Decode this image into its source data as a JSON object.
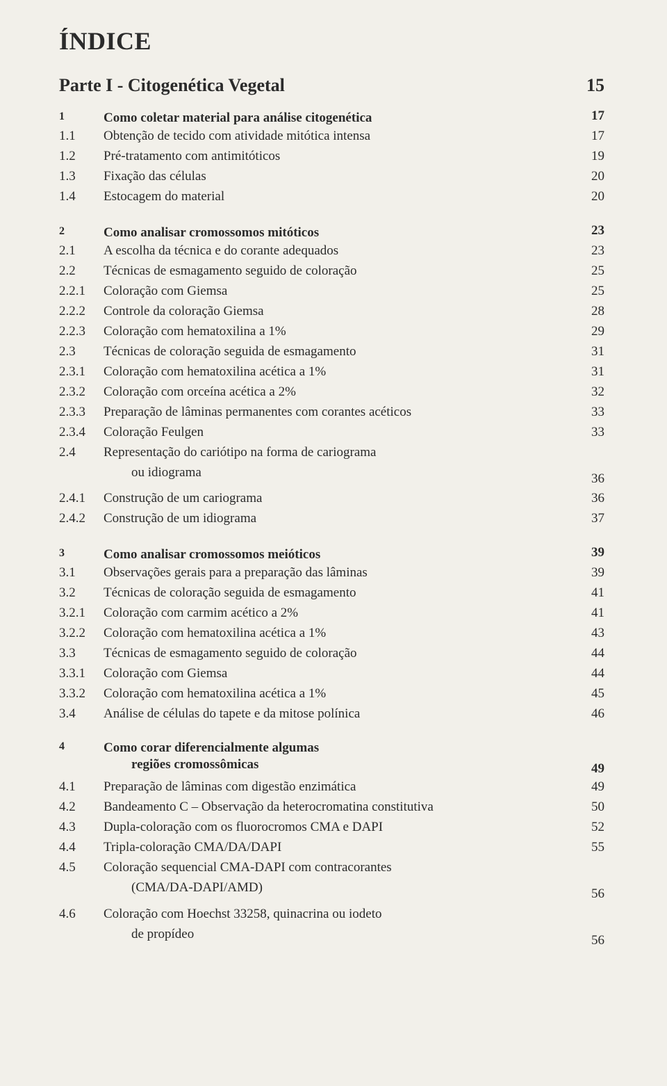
{
  "title": "ÍNDICE",
  "part": {
    "label": "Parte I - Citogenética Vegetal",
    "page": "15"
  },
  "fonts": {
    "title_size": 36,
    "part_size": 26,
    "body_size": 19
  },
  "colors": {
    "background": "#f2f0ea",
    "text": "#2b2b2b"
  },
  "entries": [
    {
      "type": "section",
      "num": "1",
      "label": "Como coletar material para análise citogenética",
      "page": "17"
    },
    {
      "type": "entry",
      "num": "1.1",
      "label": "Obtenção de tecido com atividade mitótica intensa",
      "page": "17"
    },
    {
      "type": "entry",
      "num": "1.2",
      "label": "Pré-tratamento com antimitóticos",
      "page": "19"
    },
    {
      "type": "entry",
      "num": "1.3",
      "label": "Fixação das células",
      "page": "20"
    },
    {
      "type": "entry",
      "num": "1.4",
      "label": "Estocagem do material",
      "page": "20"
    },
    {
      "type": "gap"
    },
    {
      "type": "section",
      "num": "2",
      "label": "Como analisar cromossomos mitóticos",
      "page": "23"
    },
    {
      "type": "entry",
      "num": "2.1",
      "label": "A escolha da técnica e do corante adequados",
      "page": "23"
    },
    {
      "type": "entry",
      "num": "2.2",
      "label": "Técnicas de esmagamento seguido de coloração",
      "page": "25"
    },
    {
      "type": "entry",
      "num": "2.2.1",
      "label": "Coloração com Giemsa",
      "page": "25"
    },
    {
      "type": "entry",
      "num": "2.2.2",
      "label": "Controle da coloração Giemsa",
      "page": "28"
    },
    {
      "type": "entry",
      "num": "2.2.3",
      "label": "Coloração com hematoxilina a 1%",
      "page": "29"
    },
    {
      "type": "entry",
      "num": "2.3",
      "label": "Técnicas de coloração seguida de esmagamento",
      "page": "31"
    },
    {
      "type": "entry",
      "num": "2.3.1",
      "label": "Coloração com hematoxilina acética a 1%",
      "page": "31"
    },
    {
      "type": "entry",
      "num": "2.3.2",
      "label": "Coloração com orceína acética a 2%",
      "page": "32"
    },
    {
      "type": "entry",
      "num": "2.3.3",
      "label": "Preparação de lâminas permanentes com corantes acéticos",
      "page": "33"
    },
    {
      "type": "entry",
      "num": "2.3.4",
      "label": "Coloração Feulgen",
      "page": "33"
    },
    {
      "type": "entry-multi",
      "num": "2.4",
      "label1": "Representação do cariótipo na forma de cariograma",
      "label2": "ou idiograma",
      "page": "36"
    },
    {
      "type": "entry",
      "num": "2.4.1",
      "label": "Construção de um cariograma",
      "page": "36"
    },
    {
      "type": "entry",
      "num": "2.4.2",
      "label": "Construção de um idiograma",
      "page": "37"
    },
    {
      "type": "gap"
    },
    {
      "type": "section",
      "num": "3",
      "label": "Como analisar cromossomos meióticos",
      "page": "39"
    },
    {
      "type": "entry",
      "num": "3.1",
      "label": "Observações gerais para a preparação das lâminas",
      "page": "39"
    },
    {
      "type": "entry",
      "num": "3.2",
      "label": "Técnicas de coloração seguida de esmagamento",
      "page": "41"
    },
    {
      "type": "entry",
      "num": "3.2.1",
      "label": "Coloração com carmim acético a 2%",
      "page": "41"
    },
    {
      "type": "entry",
      "num": "3.2.2",
      "label": "Coloração com hematoxilina acética a 1%",
      "page": "43"
    },
    {
      "type": "entry",
      "num": "3.3",
      "label": "Técnicas de esmagamento seguido de coloração",
      "page": "44"
    },
    {
      "type": "entry",
      "num": "3.3.1",
      "label": "Coloração com Giemsa",
      "page": "44"
    },
    {
      "type": "entry",
      "num": "3.3.2",
      "label": "Coloração com hematoxilina acética a 1%",
      "page": "45"
    },
    {
      "type": "entry",
      "num": "3.4",
      "label": "Análise de células do tapete e da mitose polínica",
      "page": "46"
    },
    {
      "type": "gap"
    },
    {
      "type": "section-multi",
      "num": "4",
      "label1": "Como corar diferencialmente algumas",
      "label2": "regiões cromossômicas",
      "page": "49"
    },
    {
      "type": "entry",
      "num": "4.1",
      "label": "Preparação de lâminas com digestão enzimática",
      "page": "49"
    },
    {
      "type": "entry",
      "num": "4.2",
      "label": "Bandeamento C – Observação da heterocromatina constitutiva",
      "page": "50"
    },
    {
      "type": "entry",
      "num": "4.3",
      "label": "Dupla-coloração com os fluorocromos CMA e DAPI",
      "page": "52"
    },
    {
      "type": "entry",
      "num": "4.4",
      "label": "Tripla-coloração CMA/DA/DAPI",
      "page": "55"
    },
    {
      "type": "entry-multi",
      "num": "4.5",
      "label1": "Coloração sequencial CMA-DAPI com contracorantes",
      "label2": "(CMA/DA-DAPI/AMD)",
      "page": "56"
    },
    {
      "type": "entry-multi",
      "num": "4.6",
      "label1": "Coloração com Hoechst 33258, quinacrina ou iodeto",
      "label2": "de propídeo",
      "page": "56"
    }
  ]
}
